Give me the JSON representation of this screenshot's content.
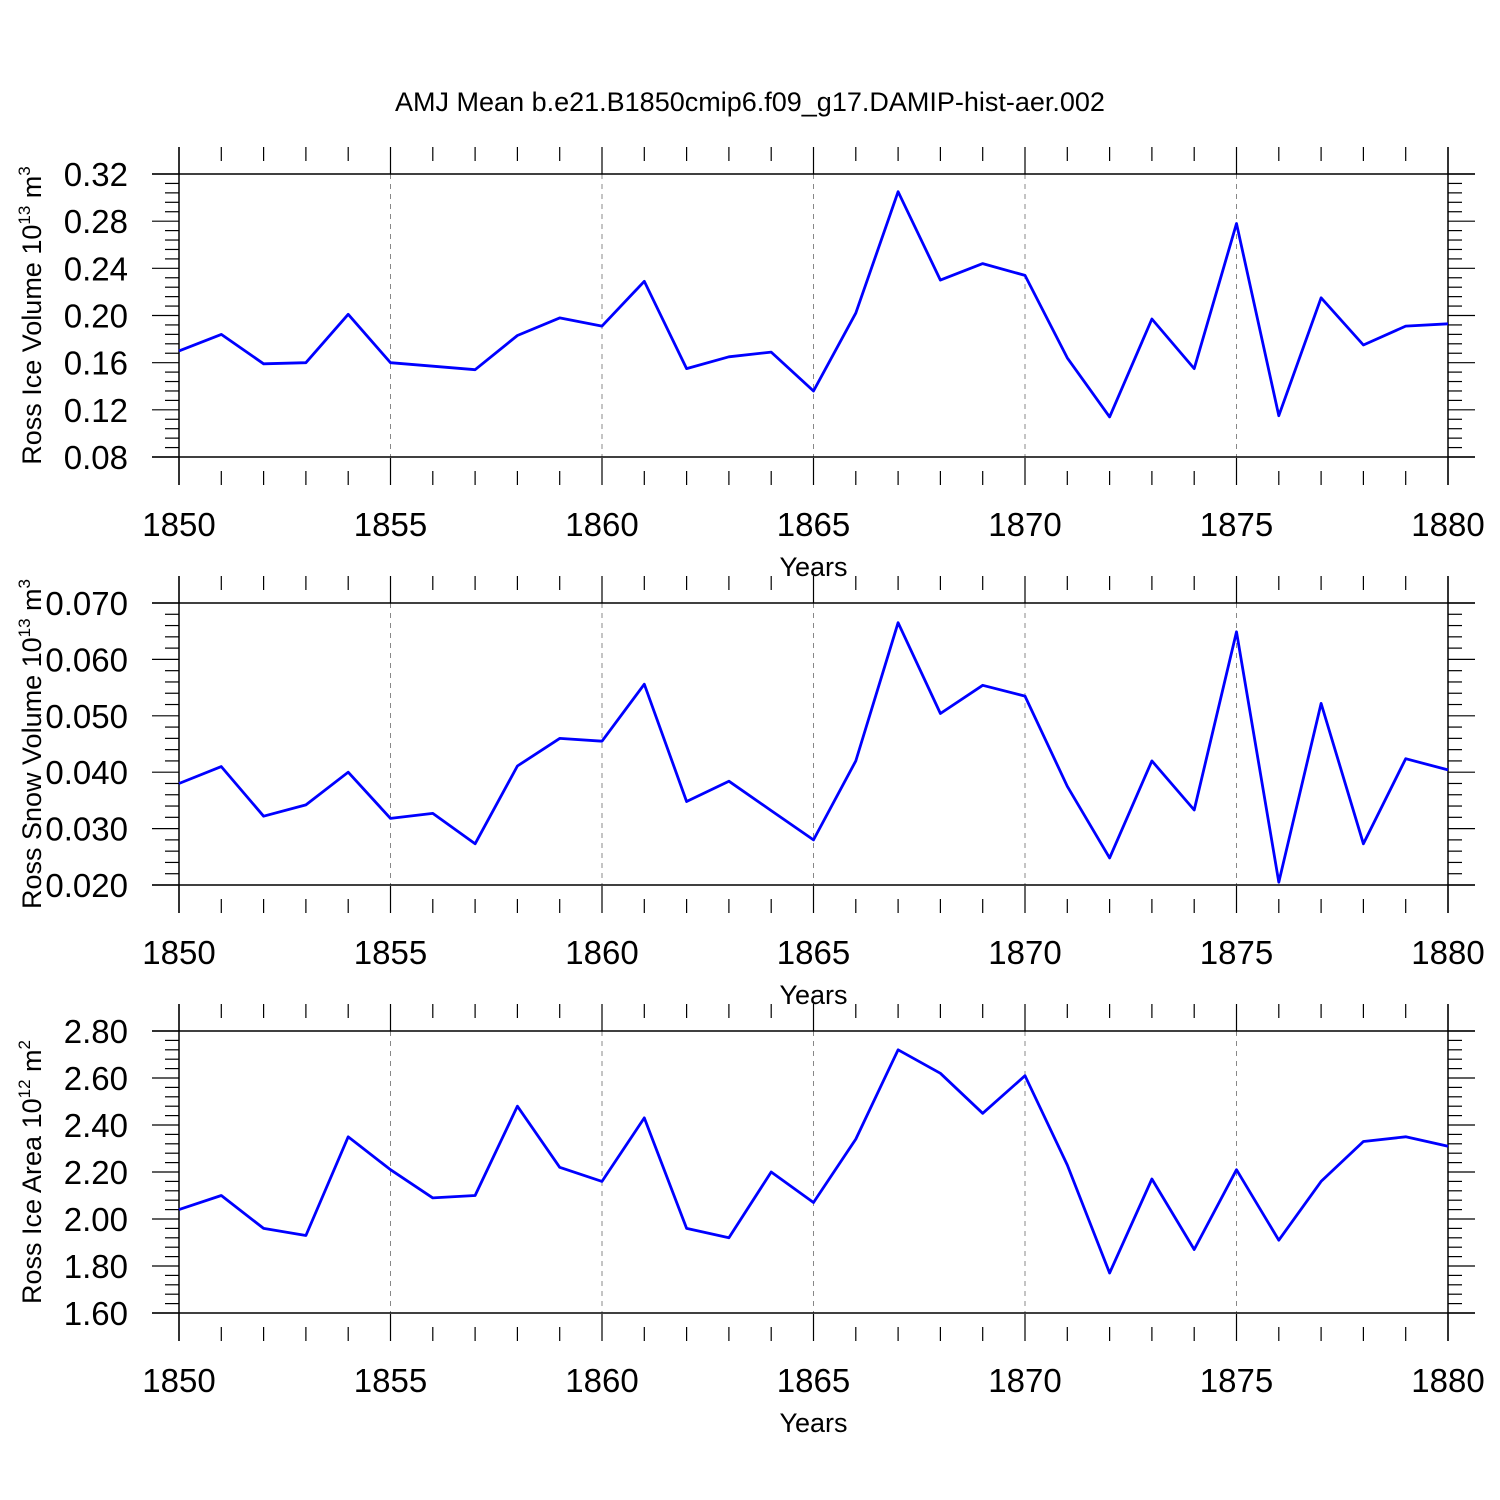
{
  "title": "AMJ Mean b.e21.B1850cmip6.f09_g17.DAMIP-hist-aer.002",
  "line_color": "#0000ff",
  "chart_data": [
    {
      "type": "line",
      "xlabel": "Years",
      "ylabel": {
        "base": "Ross Ice Volume 10",
        "sup": "13",
        "unit": " m",
        "unit_sup": "3"
      },
      "xlim": [
        1850,
        1880
      ],
      "ylim": [
        0.08,
        0.32
      ],
      "x_ticks": [
        1850,
        1855,
        1860,
        1865,
        1870,
        1875,
        1880
      ],
      "y_ticks": [
        "0.08",
        "0.12",
        "0.16",
        "0.20",
        "0.24",
        "0.28",
        "0.32"
      ],
      "y_tick_values": [
        0.08,
        0.12,
        0.16,
        0.2,
        0.24,
        0.28,
        0.32
      ],
      "grid": "vertical dashed at major x ticks",
      "x": [
        1850,
        1851,
        1852,
        1853,
        1854,
        1855,
        1856,
        1857,
        1858,
        1859,
        1860,
        1861,
        1862,
        1863,
        1864,
        1865,
        1866,
        1867,
        1868,
        1869,
        1870,
        1871,
        1872,
        1873,
        1874,
        1875,
        1876,
        1877,
        1878,
        1879,
        1880
      ],
      "values": [
        0.17,
        0.184,
        0.159,
        0.16,
        0.201,
        0.16,
        0.157,
        0.154,
        0.183,
        0.198,
        0.191,
        0.229,
        0.155,
        0.165,
        0.169,
        0.136,
        0.202,
        0.305,
        0.23,
        0.244,
        0.234,
        0.164,
        0.114,
        0.197,
        0.155,
        0.278,
        0.115,
        0.215,
        0.175,
        0.191,
        0.193
      ]
    },
    {
      "type": "line",
      "xlabel": "Years",
      "ylabel": {
        "base": "Ross Snow Volume 10",
        "sup": "13",
        "unit": " m",
        "unit_sup": "3"
      },
      "xlim": [
        1850,
        1880
      ],
      "ylim": [
        0.02,
        0.07
      ],
      "x_ticks": [
        1850,
        1855,
        1860,
        1865,
        1870,
        1875,
        1880
      ],
      "y_ticks": [
        "0.020",
        "0.030",
        "0.040",
        "0.050",
        "0.060",
        "0.070"
      ],
      "y_tick_values": [
        0.02,
        0.03,
        0.04,
        0.05,
        0.06,
        0.07
      ],
      "grid": "vertical dashed at major x ticks",
      "x": [
        1850,
        1851,
        1852,
        1853,
        1854,
        1855,
        1856,
        1857,
        1858,
        1859,
        1860,
        1861,
        1862,
        1863,
        1864,
        1865,
        1866,
        1867,
        1868,
        1869,
        1870,
        1871,
        1872,
        1873,
        1874,
        1875,
        1876,
        1877,
        1878,
        1879,
        1880
      ],
      "values": [
        0.038,
        0.041,
        0.0322,
        0.0342,
        0.04,
        0.0318,
        0.0327,
        0.0273,
        0.0411,
        0.046,
        0.0455,
        0.0556,
        0.0348,
        0.0384,
        0.0332,
        0.028,
        0.042,
        0.0665,
        0.0504,
        0.0554,
        0.0535,
        0.0375,
        0.0248,
        0.042,
        0.0333,
        0.0649,
        0.0205,
        0.0522,
        0.0273,
        0.0424,
        0.0404
      ]
    },
    {
      "type": "line",
      "xlabel": "Years",
      "ylabel": {
        "base": "Ross Ice Area 10",
        "sup": "12",
        "unit": " m",
        "unit_sup": "2"
      },
      "xlim": [
        1850,
        1880
      ],
      "ylim": [
        1.6,
        2.8
      ],
      "x_ticks": [
        1850,
        1855,
        1860,
        1865,
        1870,
        1875,
        1880
      ],
      "y_ticks": [
        "1.60",
        "1.80",
        "2.00",
        "2.20",
        "2.40",
        "2.60",
        "2.80"
      ],
      "y_tick_values": [
        1.6,
        1.8,
        2.0,
        2.2,
        2.4,
        2.6,
        2.8
      ],
      "grid": "vertical dashed at major x ticks",
      "x": [
        1850,
        1851,
        1852,
        1853,
        1854,
        1855,
        1856,
        1857,
        1858,
        1859,
        1860,
        1861,
        1862,
        1863,
        1864,
        1865,
        1866,
        1867,
        1868,
        1869,
        1870,
        1871,
        1872,
        1873,
        1874,
        1875,
        1876,
        1877,
        1878,
        1879,
        1880
      ],
      "values": [
        2.04,
        2.1,
        1.96,
        1.93,
        2.35,
        2.21,
        2.09,
        2.1,
        2.48,
        2.22,
        2.16,
        2.43,
        1.96,
        1.92,
        2.2,
        2.07,
        2.34,
        2.72,
        2.62,
        2.45,
        2.61,
        2.23,
        1.77,
        2.17,
        1.87,
        2.21,
        1.91,
        2.16,
        2.33,
        2.35,
        2.31
      ]
    }
  ]
}
